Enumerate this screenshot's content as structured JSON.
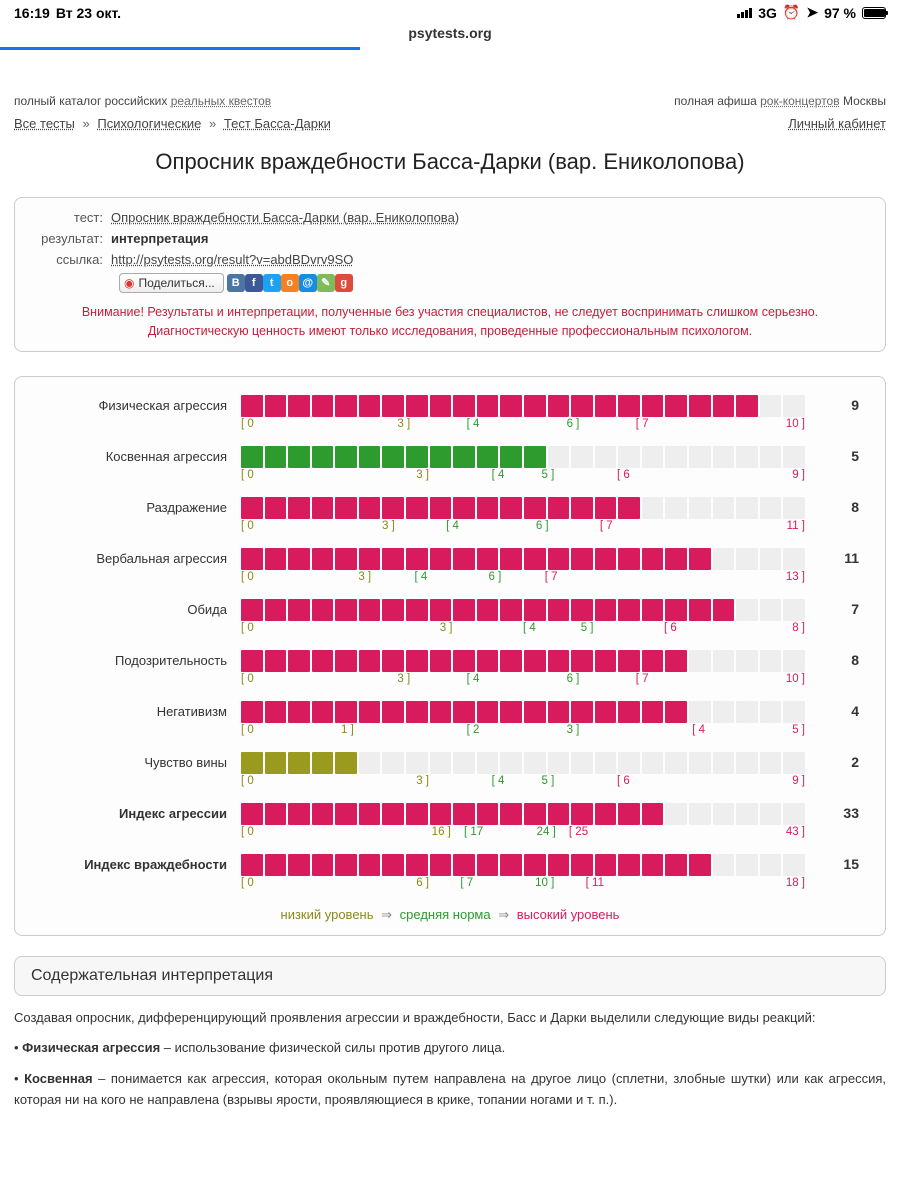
{
  "statusbar": {
    "time": "16:19",
    "date": "Вт 23 окт.",
    "network": "3G",
    "battery_pct": "97 %",
    "battery_fill_pct": 95
  },
  "browser": {
    "url_display": "psytests.org",
    "load_progress_pct": 40
  },
  "ads": {
    "left_pre": "полный каталог российских ",
    "left_link": "реальных квестов",
    "right_pre": "полная афиша ",
    "right_link": "рок-концертов",
    "right_post": " Москвы"
  },
  "breadcrumbs": {
    "b1": "Все тесты",
    "b2": "Психологические",
    "b3": "Тест Басса-Дарки",
    "sep": "»",
    "cabinet": "Личный кабинет"
  },
  "title": "Опросник враждебности Басса-Дарки (вар. Ениколопова)",
  "meta": {
    "test_label": "тест:",
    "test_link": "Опросник враждебности Басса-Дарки (вар. Ениколопова)",
    "result_label": "результат:",
    "result_value": "интерпретация",
    "link_label": "ссылка:",
    "link_url": "http://psytests.org/result?v=abdBDvrv9SO",
    "share_btn": "Поделиться..."
  },
  "share_icons": [
    {
      "bg": "#4c75a3",
      "txt": "В"
    },
    {
      "bg": "#3b5998",
      "txt": "f"
    },
    {
      "bg": "#1da1f2",
      "txt": "t"
    },
    {
      "bg": "#f58220",
      "txt": "o"
    },
    {
      "bg": "#168de2",
      "txt": "@"
    },
    {
      "bg": "#7ebc59",
      "txt": "✎"
    },
    {
      "bg": "#dd4b39",
      "txt": "g"
    }
  ],
  "warning": {
    "l1": "Внимание! Результаты и интерпретации, полученные без участия специалистов, не следует воспринимать слишком серьезно.",
    "l2": "Диагностическую ценность имеют только исследования, проведенные профессиональным психологом."
  },
  "colors": {
    "red": "#d81b5d",
    "green": "#2d9b2d",
    "olive": "#9a9a1f",
    "empty": "#eeeeee"
  },
  "bar": {
    "segments": 24
  },
  "scales": [
    {
      "label": "Физическая агрессия",
      "bold": false,
      "value": 9,
      "max": 10,
      "fill_color": "red",
      "ranges": [
        [
          0,
          3,
          "olive"
        ],
        [
          4,
          6,
          "green"
        ],
        [
          7,
          10,
          "red"
        ]
      ]
    },
    {
      "label": "Косвенная агрессия",
      "bold": false,
      "value": 5,
      "max": 9,
      "fill_color": "green",
      "ranges": [
        [
          0,
          3,
          "olive"
        ],
        [
          4,
          5,
          "green"
        ],
        [
          6,
          9,
          "red"
        ]
      ]
    },
    {
      "label": "Раздражение",
      "bold": false,
      "value": 8,
      "max": 11,
      "fill_color": "red",
      "ranges": [
        [
          0,
          3,
          "olive"
        ],
        [
          4,
          6,
          "green"
        ],
        [
          7,
          11,
          "red"
        ]
      ]
    },
    {
      "label": "Вербальная агрессия",
      "bold": false,
      "value": 11,
      "max": 13,
      "fill_color": "red",
      "ranges": [
        [
          0,
          3,
          "olive"
        ],
        [
          4,
          6,
          "green"
        ],
        [
          7,
          13,
          "red"
        ]
      ]
    },
    {
      "label": "Обида",
      "bold": false,
      "value": 7,
      "max": 8,
      "fill_color": "red",
      "ranges": [
        [
          0,
          3,
          "olive"
        ],
        [
          4,
          5,
          "green"
        ],
        [
          6,
          8,
          "red"
        ]
      ]
    },
    {
      "label": "Подозрительность",
      "bold": false,
      "value": 8,
      "max": 10,
      "fill_color": "red",
      "ranges": [
        [
          0,
          3,
          "olive"
        ],
        [
          4,
          6,
          "green"
        ],
        [
          7,
          10,
          "red"
        ]
      ]
    },
    {
      "label": "Негативизм",
      "bold": false,
      "value": 4,
      "max": 5,
      "fill_color": "red",
      "ranges": [
        [
          0,
          1,
          "olive"
        ],
        [
          2,
          3,
          "green"
        ],
        [
          4,
          5,
          "red"
        ]
      ]
    },
    {
      "label": "Чувство вины",
      "bold": false,
      "value": 2,
      "max": 9,
      "fill_color": "olive",
      "ranges": [
        [
          0,
          3,
          "olive"
        ],
        [
          4,
          5,
          "green"
        ],
        [
          6,
          9,
          "red"
        ]
      ]
    },
    {
      "label": "Индекс агрессии",
      "bold": true,
      "value": 33,
      "max": 43,
      "fill_color": "red",
      "ranges": [
        [
          0,
          16,
          "olive"
        ],
        [
          17,
          24,
          "green"
        ],
        [
          25,
          43,
          "red"
        ]
      ]
    },
    {
      "label": "Индекс враждебности",
      "bold": true,
      "value": 15,
      "max": 18,
      "fill_color": "red",
      "ranges": [
        [
          0,
          6,
          "olive"
        ],
        [
          7,
          10,
          "green"
        ],
        [
          11,
          18,
          "red"
        ]
      ]
    }
  ],
  "legend": {
    "low": "низкий уровень",
    "mid": "средняя норма",
    "high": "высокий уровень",
    "arrow": "⇒"
  },
  "section2_title": "Содержательная интерпретация",
  "interp": {
    "intro": "Создавая опросник, дифференцирующий проявления агрессии и враждебности, Басс и Дарки выделили следующие виды реакций:",
    "p1_b": "Физическая агрессия",
    "p1_t": " – использование физической силы против другого лица.",
    "p2_b": "Косвенная",
    "p2_t": " – понимается как агрессия, которая окольным путем направлена на другое лицо (сплетни, злобные шутки) или как агрессия, которая ни на кого не направлена (взрывы ярости, проявляющиеся в крике, топании ногами и т. п.)."
  }
}
